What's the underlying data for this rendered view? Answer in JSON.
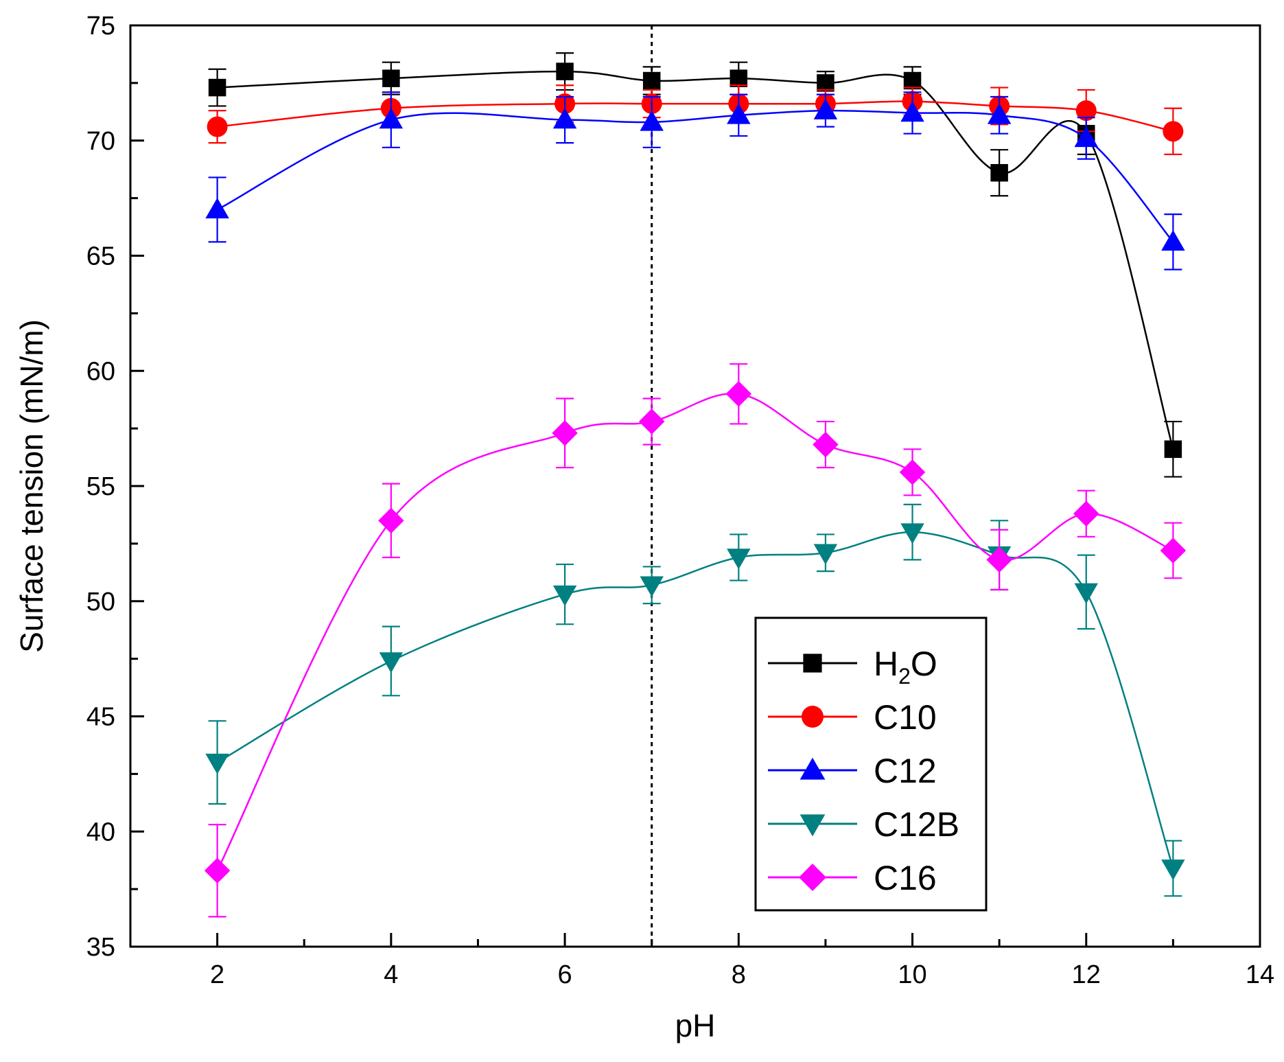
{
  "chart_data": {
    "type": "line",
    "title": "",
    "xlabel": "pH",
    "ylabel": "Surface tension (mN/m)",
    "xlim": [
      1,
      14
    ],
    "ylim": [
      35,
      75
    ],
    "xticks": [
      2,
      4,
      6,
      8,
      10,
      12,
      14
    ],
    "yticks": [
      35,
      40,
      45,
      50,
      55,
      60,
      65,
      70,
      75
    ],
    "reference_line": {
      "x": 7,
      "style": "dotted"
    },
    "legend": {
      "position": "bottom-right"
    },
    "x": [
      2,
      4,
      6,
      7,
      8,
      9,
      10,
      11,
      12,
      13
    ],
    "series": [
      {
        "name": "H2O",
        "label_main": "H",
        "label_sub": "2",
        "label_tail": "O",
        "marker": "square",
        "color": "#000000",
        "values": [
          72.3,
          72.7,
          73.0,
          72.6,
          72.7,
          72.5,
          72.6,
          68.6,
          70.3,
          56.6
        ],
        "errors": [
          0.8,
          0.7,
          0.8,
          0.6,
          0.7,
          0.5,
          0.6,
          1.0,
          0.9,
          1.2
        ]
      },
      {
        "name": "C10",
        "label_main": "C10",
        "marker": "circle",
        "color": "#ff0000",
        "values": [
          70.6,
          71.4,
          71.6,
          71.6,
          71.6,
          71.6,
          71.7,
          71.5,
          71.3,
          70.4
        ],
        "errors": [
          0.7,
          0.7,
          0.8,
          0.6,
          0.8,
          0.6,
          0.6,
          0.8,
          0.9,
          1.0
        ]
      },
      {
        "name": "C12",
        "label_main": "C12",
        "marker": "triangle-up",
        "color": "#0000ff",
        "values": [
          67.0,
          70.9,
          70.9,
          70.8,
          71.1,
          71.3,
          71.2,
          71.1,
          70.1,
          65.6
        ],
        "errors": [
          1.4,
          1.2,
          1.0,
          1.1,
          0.9,
          0.7,
          0.9,
          0.8,
          0.9,
          1.2
        ]
      },
      {
        "name": "C12B",
        "label_main": "C12B",
        "marker": "triangle-down",
        "color": "#008080",
        "values": [
          43.0,
          47.4,
          50.3,
          50.7,
          51.9,
          52.1,
          53.0,
          52.0,
          50.4,
          38.4
        ],
        "errors": [
          1.8,
          1.5,
          1.3,
          0.8,
          1.0,
          0.8,
          1.2,
          1.5,
          1.6,
          1.2
        ]
      },
      {
        "name": "C16",
        "label_main": "C16",
        "marker": "diamond",
        "color": "#ff00ff",
        "values": [
          38.3,
          53.5,
          57.3,
          57.8,
          59.0,
          56.8,
          55.6,
          51.8,
          53.8,
          52.2
        ],
        "errors": [
          2.0,
          1.6,
          1.5,
          1.0,
          1.3,
          1.0,
          1.0,
          1.3,
          1.0,
          1.2
        ]
      }
    ]
  }
}
